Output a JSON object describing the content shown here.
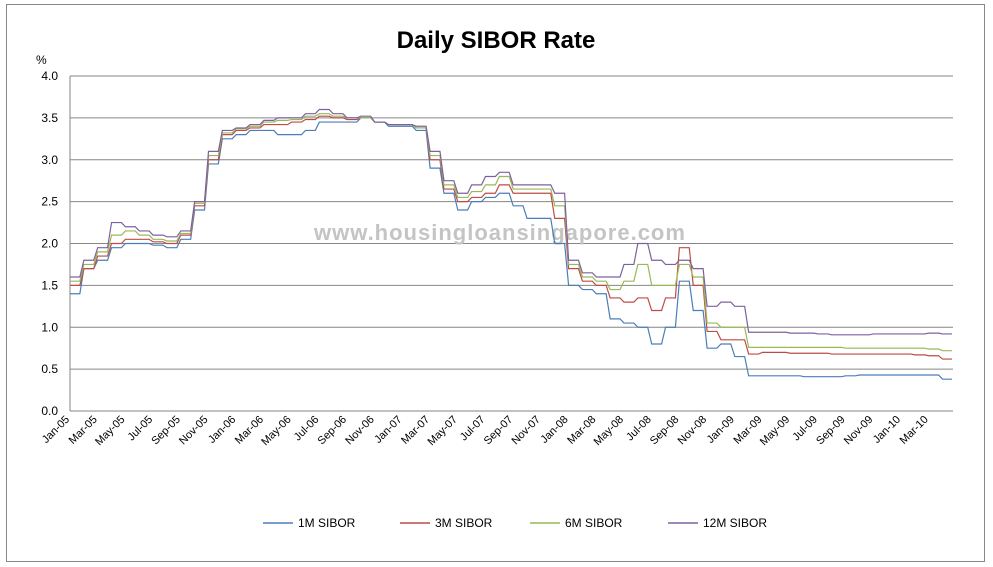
{
  "chart_data": {
    "type": "line",
    "title": "Daily SIBOR Rate",
    "ylabel": "%",
    "xlabel": "",
    "ylim": [
      0,
      4
    ],
    "yticks": [
      "0.0",
      "0.5",
      "1.0",
      "1.5",
      "2.0",
      "2.5",
      "3.0",
      "3.5",
      "4.0"
    ],
    "xtick_labels": [
      "Jan-05",
      "Mar-05",
      "May-05",
      "Jul-05",
      "Sep-05",
      "Nov-05",
      "Jan-06",
      "Mar-06",
      "May-06",
      "Jul-06",
      "Sep-06",
      "Nov-06",
      "Jan-07",
      "Mar-07",
      "May-07",
      "Jul-07",
      "Sep-07",
      "Nov-07",
      "Jan-08",
      "Mar-08",
      "May-08",
      "Jul-08",
      "Sep-08",
      "Nov-08",
      "Jan-09",
      "Mar-09",
      "May-09",
      "Jul-09",
      "Sep-09",
      "Nov-09",
      "Jan-10",
      "Mar-10"
    ],
    "x_start": "2005-01",
    "x_step": "1 month",
    "grid": "horizontal",
    "legend_position": "bottom",
    "watermark": "www.housingloansingapore.com",
    "series": [
      {
        "name": "1M SIBOR",
        "color": "#4a7ebb",
        "values": [
          1.4,
          1.7,
          1.8,
          1.95,
          2.0,
          2.0,
          1.98,
          1.95,
          2.05,
          2.4,
          2.95,
          3.25,
          3.3,
          3.35,
          3.35,
          3.3,
          3.3,
          3.35,
          3.45,
          3.45,
          3.45,
          3.5,
          3.45,
          3.4,
          3.4,
          3.35,
          2.9,
          2.6,
          2.4,
          2.5,
          2.55,
          2.6,
          2.45,
          2.3,
          2.3,
          2.0,
          1.5,
          1.45,
          1.4,
          1.1,
          1.05,
          1.0,
          0.8,
          1.0,
          1.55,
          1.2,
          0.75,
          0.8,
          0.65,
          0.42,
          0.42,
          0.42,
          0.42,
          0.41,
          0.41,
          0.41,
          0.42,
          0.43,
          0.43,
          0.43,
          0.43,
          0.43,
          0.43,
          0.38
        ]
      },
      {
        "name": "3M SIBOR",
        "color": "#be4b48",
        "values": [
          1.5,
          1.7,
          1.85,
          2.0,
          2.05,
          2.05,
          2.02,
          2.0,
          2.1,
          2.45,
          3.0,
          3.3,
          3.35,
          3.38,
          3.42,
          3.42,
          3.45,
          3.48,
          3.52,
          3.5,
          3.48,
          3.5,
          3.45,
          3.42,
          3.42,
          3.38,
          3.0,
          2.65,
          2.5,
          2.55,
          2.6,
          2.7,
          2.6,
          2.6,
          2.6,
          2.3,
          1.7,
          1.55,
          1.5,
          1.35,
          1.3,
          1.35,
          1.2,
          1.35,
          1.95,
          1.5,
          0.95,
          0.85,
          0.85,
          0.68,
          0.7,
          0.7,
          0.69,
          0.69,
          0.69,
          0.68,
          0.68,
          0.68,
          0.68,
          0.68,
          0.68,
          0.67,
          0.66,
          0.62
        ]
      },
      {
        "name": "6M SIBOR",
        "color": "#98b954",
        "values": [
          1.55,
          1.75,
          1.9,
          2.1,
          2.15,
          2.1,
          2.05,
          2.03,
          2.12,
          2.48,
          3.05,
          3.32,
          3.37,
          3.4,
          3.45,
          3.47,
          3.48,
          3.52,
          3.55,
          3.52,
          3.5,
          3.5,
          3.45,
          3.42,
          3.42,
          3.38,
          3.05,
          2.7,
          2.55,
          2.62,
          2.7,
          2.8,
          2.65,
          2.65,
          2.65,
          2.45,
          1.75,
          1.6,
          1.55,
          1.45,
          1.55,
          1.75,
          1.5,
          1.5,
          1.75,
          1.6,
          1.05,
          1.0,
          1.0,
          0.76,
          0.76,
          0.76,
          0.76,
          0.76,
          0.76,
          0.76,
          0.75,
          0.75,
          0.75,
          0.75,
          0.75,
          0.75,
          0.74,
          0.72
        ]
      },
      {
        "name": "12M SIBOR",
        "color": "#7d60a0",
        "values": [
          1.6,
          1.8,
          1.95,
          2.25,
          2.2,
          2.15,
          2.1,
          2.08,
          2.15,
          2.5,
          3.1,
          3.35,
          3.38,
          3.42,
          3.47,
          3.5,
          3.5,
          3.55,
          3.6,
          3.55,
          3.5,
          3.52,
          3.45,
          3.42,
          3.42,
          3.4,
          3.1,
          2.75,
          2.6,
          2.7,
          2.8,
          2.85,
          2.7,
          2.7,
          2.7,
          2.6,
          1.8,
          1.65,
          1.6,
          1.6,
          1.75,
          2.0,
          1.8,
          1.75,
          1.8,
          1.7,
          1.25,
          1.3,
          1.25,
          0.94,
          0.94,
          0.94,
          0.93,
          0.93,
          0.92,
          0.91,
          0.91,
          0.91,
          0.92,
          0.92,
          0.92,
          0.92,
          0.93,
          0.92
        ]
      }
    ]
  }
}
